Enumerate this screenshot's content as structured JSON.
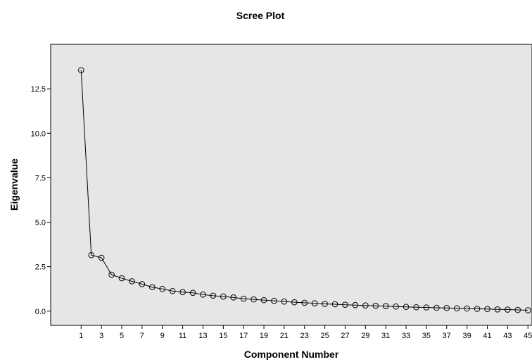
{
  "chart_data": {
    "type": "line",
    "title": "Scree Plot",
    "x_label": "Component Number",
    "y_label": "Eigenvalue",
    "x": [
      1,
      2,
      3,
      4,
      5,
      6,
      7,
      8,
      9,
      10,
      11,
      12,
      13,
      14,
      15,
      16,
      17,
      18,
      19,
      20,
      21,
      22,
      23,
      24,
      25,
      26,
      27,
      28,
      29,
      30,
      31,
      32,
      33,
      34,
      35,
      36,
      37,
      38,
      39,
      40,
      41,
      42,
      43,
      44,
      45
    ],
    "values": [
      13.55,
      3.15,
      3.0,
      2.05,
      1.85,
      1.68,
      1.52,
      1.35,
      1.25,
      1.13,
      1.07,
      1.03,
      0.93,
      0.87,
      0.82,
      0.77,
      0.7,
      0.66,
      0.62,
      0.58,
      0.54,
      0.5,
      0.47,
      0.44,
      0.41,
      0.39,
      0.36,
      0.34,
      0.32,
      0.3,
      0.28,
      0.26,
      0.24,
      0.22,
      0.21,
      0.19,
      0.18,
      0.16,
      0.15,
      0.13,
      0.12,
      0.1,
      0.09,
      0.07,
      0.05
    ],
    "color": "#000000",
    "xlim": [
      -2,
      45.4
    ],
    "xticks": [
      1,
      3,
      5,
      7,
      9,
      11,
      13,
      15,
      17,
      19,
      21,
      23,
      25,
      27,
      29,
      31,
      33,
      35,
      37,
      39,
      41,
      43,
      45
    ],
    "ylim": [
      -0.8,
      15
    ],
    "yticks": [
      {
        "value": 0,
        "label": "0.0"
      },
      2.5,
      {
        "value": 5,
        "label": "5.0"
      },
      7.5,
      {
        "value": 10,
        "label": "10.0"
      },
      12.5
    ]
  }
}
